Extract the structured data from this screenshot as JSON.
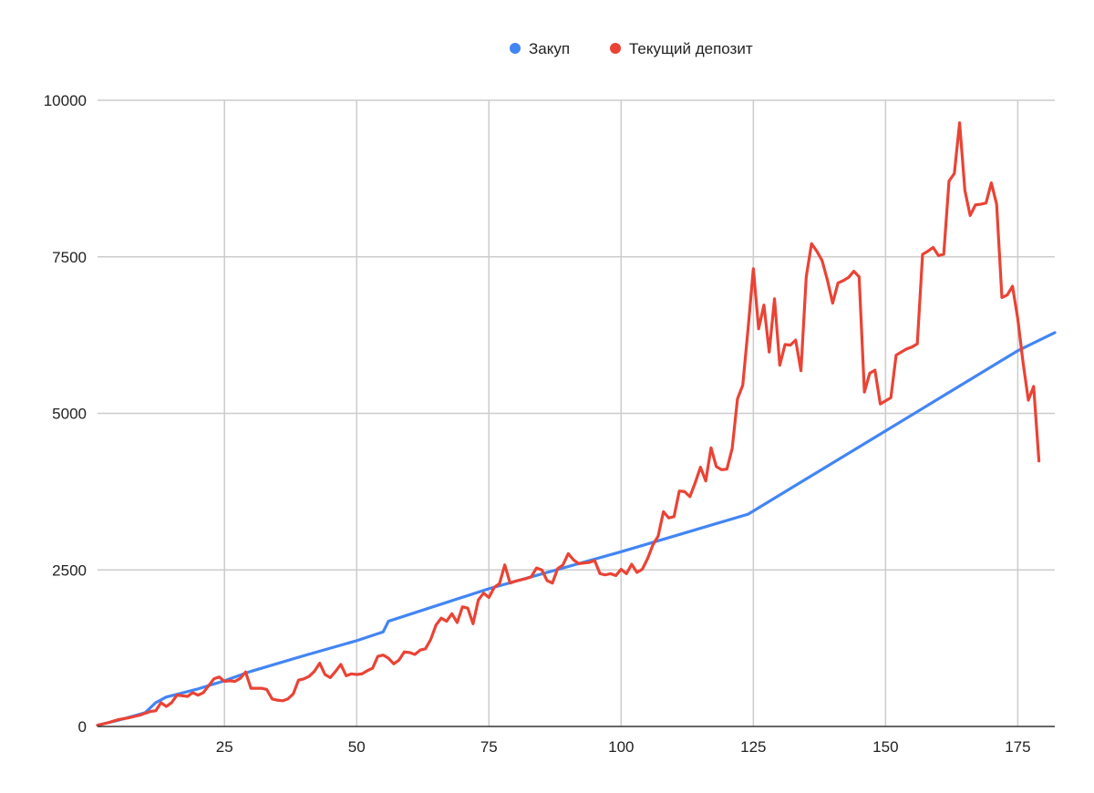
{
  "chart_data": {
    "type": "line",
    "title": "",
    "xlabel": "",
    "ylabel": "",
    "xlim": [
      1,
      182
    ],
    "ylim": [
      0,
      10000
    ],
    "x_ticks": [
      25,
      50,
      75,
      100,
      125,
      150,
      175
    ],
    "y_ticks": [
      0,
      2500,
      5000,
      7500,
      10000
    ],
    "grid": true,
    "legend_position": "top",
    "series": [
      {
        "name": "Закуп",
        "color": "#4285F4",
        "points": [
          [
            1,
            20
          ],
          [
            5,
            100
          ],
          [
            10,
            220
          ],
          [
            12,
            380
          ],
          [
            14,
            470
          ],
          [
            20,
            600
          ],
          [
            25,
            730
          ],
          [
            30,
            880
          ],
          [
            40,
            1130
          ],
          [
            50,
            1370
          ],
          [
            55,
            1510
          ],
          [
            56,
            1680
          ],
          [
            75,
            2200
          ],
          [
            100,
            2790
          ],
          [
            124,
            3390
          ],
          [
            150,
            4720
          ],
          [
            175,
            6000
          ],
          [
            182,
            6290
          ]
        ]
      },
      {
        "name": "Текущий депозит",
        "color": "#EA4335",
        "points": [
          [
            1,
            20
          ],
          [
            3,
            60
          ],
          [
            5,
            110
          ],
          [
            7,
            140
          ],
          [
            9,
            180
          ],
          [
            11,
            240
          ],
          [
            12,
            250
          ],
          [
            13,
            380
          ],
          [
            14,
            320
          ],
          [
            15,
            380
          ],
          [
            16,
            500
          ],
          [
            17,
            490
          ],
          [
            18,
            480
          ],
          [
            19,
            540
          ],
          [
            20,
            500
          ],
          [
            21,
            540
          ],
          [
            22,
            650
          ],
          [
            23,
            760
          ],
          [
            24,
            790
          ],
          [
            25,
            720
          ],
          [
            26,
            730
          ],
          [
            27,
            720
          ],
          [
            28,
            770
          ],
          [
            29,
            870
          ],
          [
            30,
            610
          ],
          [
            31,
            610
          ],
          [
            32,
            610
          ],
          [
            33,
            590
          ],
          [
            34,
            440
          ],
          [
            35,
            420
          ],
          [
            36,
            410
          ],
          [
            37,
            440
          ],
          [
            38,
            520
          ],
          [
            39,
            740
          ],
          [
            40,
            760
          ],
          [
            41,
            800
          ],
          [
            42,
            880
          ],
          [
            43,
            1010
          ],
          [
            44,
            830
          ],
          [
            45,
            780
          ],
          [
            46,
            880
          ],
          [
            47,
            990
          ],
          [
            48,
            810
          ],
          [
            49,
            840
          ],
          [
            50,
            830
          ],
          [
            51,
            840
          ],
          [
            52,
            890
          ],
          [
            53,
            930
          ],
          [
            54,
            1120
          ],
          [
            55,
            1140
          ],
          [
            56,
            1090
          ],
          [
            57,
            1000
          ],
          [
            58,
            1060
          ],
          [
            59,
            1190
          ],
          [
            60,
            1180
          ],
          [
            61,
            1150
          ],
          [
            62,
            1220
          ],
          [
            63,
            1240
          ],
          [
            64,
            1390
          ],
          [
            65,
            1620
          ],
          [
            66,
            1730
          ],
          [
            67,
            1680
          ],
          [
            68,
            1800
          ],
          [
            69,
            1660
          ],
          [
            70,
            1910
          ],
          [
            71,
            1890
          ],
          [
            72,
            1640
          ],
          [
            73,
            2020
          ],
          [
            74,
            2130
          ],
          [
            75,
            2060
          ],
          [
            76,
            2220
          ],
          [
            77,
            2280
          ],
          [
            78,
            2580
          ],
          [
            79,
            2290
          ],
          [
            80,
            2320
          ],
          [
            81,
            2340
          ],
          [
            82,
            2360
          ],
          [
            83,
            2390
          ],
          [
            84,
            2530
          ],
          [
            85,
            2500
          ],
          [
            86,
            2330
          ],
          [
            87,
            2290
          ],
          [
            88,
            2520
          ],
          [
            89,
            2580
          ],
          [
            90,
            2760
          ],
          [
            91,
            2660
          ],
          [
            92,
            2600
          ],
          [
            93,
            2610
          ],
          [
            94,
            2620
          ],
          [
            95,
            2650
          ],
          [
            96,
            2440
          ],
          [
            97,
            2420
          ],
          [
            98,
            2440
          ],
          [
            99,
            2410
          ],
          [
            100,
            2510
          ],
          [
            101,
            2440
          ],
          [
            102,
            2590
          ],
          [
            103,
            2460
          ],
          [
            104,
            2510
          ],
          [
            105,
            2680
          ],
          [
            106,
            2900
          ],
          [
            107,
            3040
          ],
          [
            108,
            3430
          ],
          [
            109,
            3330
          ],
          [
            110,
            3350
          ],
          [
            111,
            3760
          ],
          [
            112,
            3750
          ],
          [
            113,
            3670
          ],
          [
            114,
            3890
          ],
          [
            115,
            4140
          ],
          [
            116,
            3920
          ],
          [
            117,
            4450
          ],
          [
            118,
            4150
          ],
          [
            119,
            4100
          ],
          [
            120,
            4110
          ],
          [
            121,
            4440
          ],
          [
            122,
            5230
          ],
          [
            123,
            5450
          ],
          [
            124,
            6350
          ],
          [
            125,
            7310
          ],
          [
            126,
            6350
          ],
          [
            127,
            6730
          ],
          [
            128,
            5980
          ],
          [
            129,
            6830
          ],
          [
            130,
            5770
          ],
          [
            131,
            6100
          ],
          [
            132,
            6090
          ],
          [
            133,
            6170
          ],
          [
            134,
            5680
          ],
          [
            135,
            7180
          ],
          [
            136,
            7710
          ],
          [
            137,
            7590
          ],
          [
            138,
            7440
          ],
          [
            139,
            7130
          ],
          [
            140,
            6760
          ],
          [
            141,
            7080
          ],
          [
            142,
            7120
          ],
          [
            143,
            7170
          ],
          [
            144,
            7270
          ],
          [
            145,
            7180
          ],
          [
            146,
            5340
          ],
          [
            147,
            5640
          ],
          [
            148,
            5690
          ],
          [
            149,
            5150
          ],
          [
            150,
            5200
          ],
          [
            151,
            5250
          ],
          [
            152,
            5930
          ],
          [
            153,
            5980
          ],
          [
            154,
            6030
          ],
          [
            155,
            6060
          ],
          [
            156,
            6110
          ],
          [
            157,
            7540
          ],
          [
            158,
            7590
          ],
          [
            159,
            7650
          ],
          [
            160,
            7520
          ],
          [
            161,
            7540
          ],
          [
            162,
            8710
          ],
          [
            163,
            8830
          ],
          [
            164,
            9640
          ],
          [
            165,
            8560
          ],
          [
            166,
            8160
          ],
          [
            167,
            8330
          ],
          [
            168,
            8340
          ],
          [
            169,
            8360
          ],
          [
            170,
            8680
          ],
          [
            171,
            8340
          ],
          [
            172,
            6850
          ],
          [
            173,
            6890
          ],
          [
            174,
            7030
          ],
          [
            175,
            6510
          ],
          [
            176,
            5810
          ],
          [
            177,
            5210
          ],
          [
            178,
            5430
          ],
          [
            179,
            4240
          ]
        ]
      }
    ]
  }
}
